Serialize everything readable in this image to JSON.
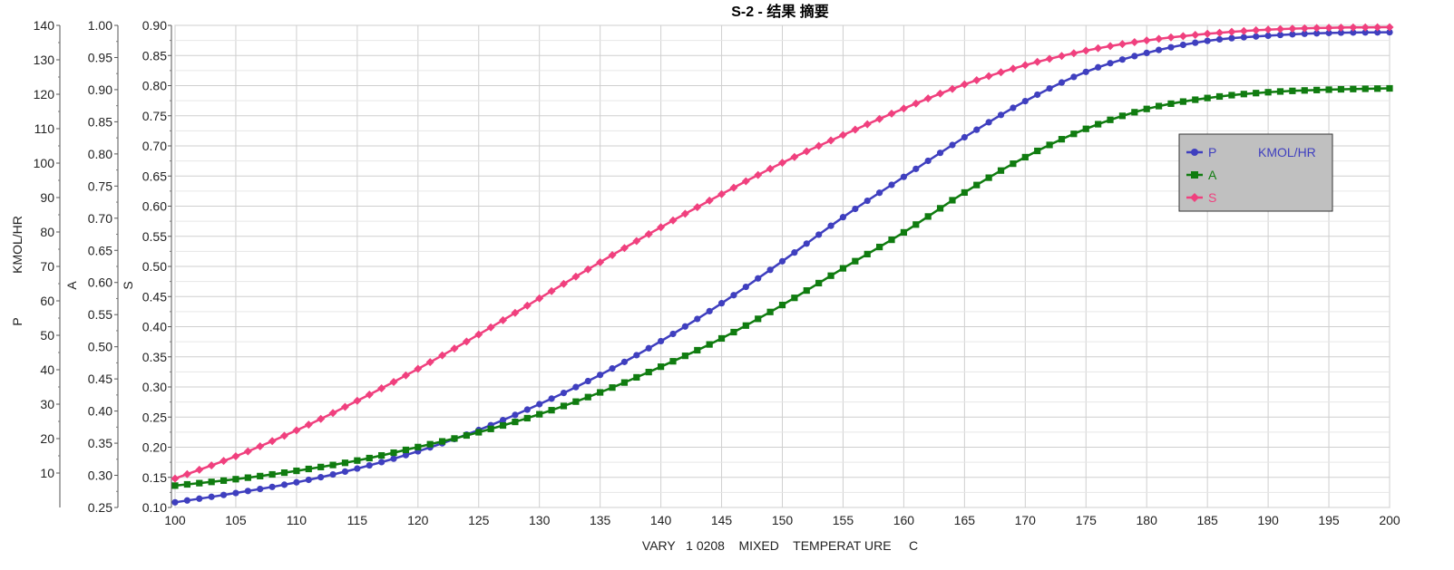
{
  "chart_data": {
    "type": "line",
    "title": "S-2 - 结果 摘要",
    "xlabel": "VARY   1 0208    MIXED    TEMPERAT URE     C",
    "x_range": [
      100,
      200
    ],
    "x_ticks": [
      100,
      105,
      110,
      115,
      120,
      125,
      130,
      135,
      140,
      145,
      150,
      155,
      160,
      165,
      170,
      175,
      180,
      185,
      190,
      195,
      200
    ],
    "grid": true,
    "legend_position": "right",
    "axes": [
      {
        "id": "P",
        "label": "P",
        "unit": "KMOL/HR",
        "range": [
          0,
          140
        ],
        "ticks": [
          10,
          20,
          30,
          40,
          50,
          60,
          70,
          80,
          90,
          100,
          110,
          120,
          130,
          140
        ]
      },
      {
        "id": "A",
        "label": "A",
        "range": [
          0.25,
          1.0
        ],
        "ticks": [
          "0.25",
          "0.30",
          "0.35",
          "0.40",
          "0.45",
          "0.50",
          "0.55",
          "0.60",
          "0.65",
          "0.70",
          "0.75",
          "0.80",
          "0.85",
          "0.90",
          "0.95",
          "1.00"
        ]
      },
      {
        "id": "S",
        "label": "S",
        "range": [
          0.1,
          0.9
        ],
        "ticks": [
          "0.10",
          "0.15",
          "0.20",
          "0.25",
          "0.30",
          "0.35",
          "0.40",
          "0.45",
          "0.50",
          "0.55",
          "0.60",
          "0.65",
          "0.70",
          "0.75",
          "0.80",
          "0.85",
          "0.90"
        ]
      }
    ],
    "series": [
      {
        "name": "P",
        "unit": "KMOL/HR",
        "axis": "P",
        "color": "#3f3fbf",
        "marker": "circle",
        "x": [
          100,
          105,
          110,
          115,
          120,
          125,
          130,
          135,
          140,
          145,
          150,
          155,
          160,
          165,
          170,
          175,
          180,
          185,
          190,
          195,
          200
        ],
        "y": [
          1.5,
          4.2,
          7.3,
          11.3,
          16.3,
          22.5,
          30.0,
          38.5,
          48.3,
          59.3,
          71.5,
          84.3,
          96.0,
          107.5,
          118.0,
          126.5,
          132.0,
          135.5,
          137.0,
          137.8,
          138.0
        ]
      },
      {
        "name": "A",
        "axis": "A",
        "color": "#107c10",
        "marker": "square",
        "x": [
          100,
          105,
          110,
          115,
          120,
          125,
          130,
          135,
          140,
          145,
          150,
          155,
          160,
          165,
          170,
          175,
          180,
          185,
          190,
          195,
          200
        ],
        "y": [
          0.284,
          0.294,
          0.307,
          0.323,
          0.344,
          0.367,
          0.395,
          0.429,
          0.469,
          0.513,
          0.565,
          0.622,
          0.678,
          0.74,
          0.795,
          0.839,
          0.87,
          0.887,
          0.896,
          0.9,
          0.902
        ]
      },
      {
        "name": "S",
        "axis": "S",
        "color": "#f0407e",
        "marker": "diamond",
        "x": [
          100,
          105,
          110,
          115,
          120,
          125,
          130,
          135,
          140,
          145,
          150,
          155,
          160,
          165,
          170,
          175,
          180,
          185,
          190,
          195,
          200
        ],
        "y": [
          0.148,
          0.185,
          0.228,
          0.277,
          0.33,
          0.387,
          0.447,
          0.507,
          0.565,
          0.62,
          0.672,
          0.718,
          0.762,
          0.802,
          0.834,
          0.858,
          0.875,
          0.886,
          0.893,
          0.896,
          0.897
        ]
      }
    ]
  }
}
